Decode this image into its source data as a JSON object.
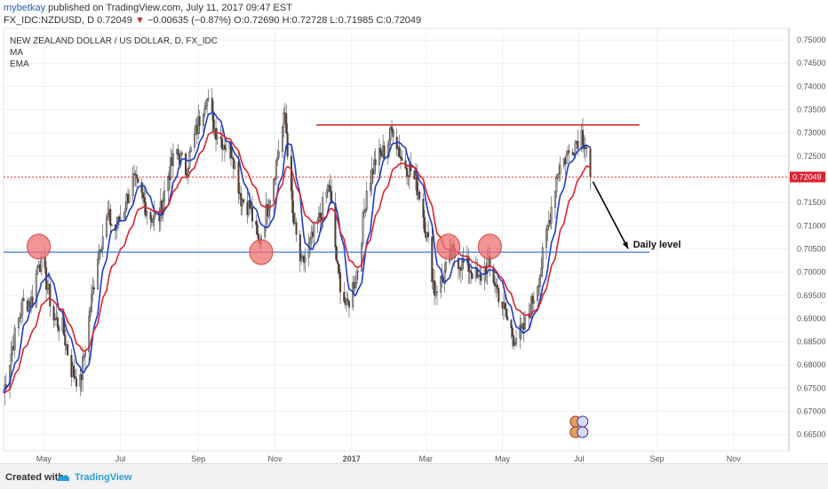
{
  "header": {
    "author": "mybetkay",
    "published_text": "published on TradingView.com, July 11, 2017 09:47 EST",
    "symbol": "FX_IDC:NZDUSD, D",
    "last": "0.72049",
    "change": "−0.00635 (−0.87%)",
    "ohlc": "O:0.72690 H:0.72728 L:0.71985 C:0.72049"
  },
  "legend": {
    "title": "NEW ZEALAND DOLLAR / US DOLLAR, D, FX_IDC",
    "ma": "MA",
    "ema": "EMA"
  },
  "annotation": {
    "daily_level": "Daily level"
  },
  "footer": {
    "created_with": "Created with",
    "brand": "TradingView"
  },
  "colors": {
    "up_candle": "#a8a8a8",
    "down_candle": "#5a3a2a",
    "ma_line": "#1f3cc7",
    "ema_line": "#d9232e",
    "support_line": "#3d7ad6",
    "resistance_line": "#d22b2b",
    "highlight": "#f07070",
    "price_label_bg": "#d9232e"
  },
  "chart_data": {
    "type": "candlestick",
    "title": "NEW ZEALAND DOLLAR / US DOLLAR, D, FX_IDC",
    "y_axis_side": "right",
    "ylim": [
      0.6615,
      0.7525
    ],
    "y_ticks": [
      "0.75000",
      "0.74500",
      "0.74000",
      "0.73500",
      "0.73000",
      "0.72500",
      "0.72000",
      "0.71500",
      "0.71000",
      "0.70500",
      "0.70000",
      "0.69500",
      "0.69000",
      "0.68500",
      "0.68000",
      "0.67500",
      "0.67000",
      "0.66500"
    ],
    "x_ticks": [
      {
        "label": "May",
        "date": "2016-05-01"
      },
      {
        "label": "Jul",
        "date": "2016-07-01"
      },
      {
        "label": "Sep",
        "date": "2016-09-01"
      },
      {
        "label": "Nov",
        "date": "2016-11-01"
      },
      {
        "label": "2017",
        "date": "2017-01-01"
      },
      {
        "label": "Mar",
        "date": "2017-03-01"
      },
      {
        "label": "May",
        "date": "2017-05-01"
      },
      {
        "label": "Jul",
        "date": "2017-07-01"
      },
      {
        "label": "Sep",
        "date": "2017-09-01"
      },
      {
        "label": "Nov",
        "date": "2017-11-01"
      }
    ],
    "x_range": [
      "2016-03-30",
      "2017-12-15"
    ],
    "last_price": {
      "value": 0.72049,
      "label": "0.72049"
    },
    "price_path": [
      [
        "2016-03-30",
        0.674
      ],
      [
        "2016-04-06",
        0.684
      ],
      [
        "2016-04-14",
        0.693
      ],
      [
        "2016-04-22",
        0.694
      ],
      [
        "2016-04-27",
        0.703
      ],
      [
        "2016-05-03",
        0.698
      ],
      [
        "2016-05-09",
        0.69
      ],
      [
        "2016-05-16",
        0.688
      ],
      [
        "2016-05-23",
        0.679
      ],
      [
        "2016-05-30",
        0.676
      ],
      [
        "2016-06-06",
        0.69
      ],
      [
        "2016-06-13",
        0.704
      ],
      [
        "2016-06-21",
        0.712
      ],
      [
        "2016-06-27",
        0.709
      ],
      [
        "2016-07-04",
        0.714
      ],
      [
        "2016-07-11",
        0.72
      ],
      [
        "2016-07-18",
        0.716
      ],
      [
        "2016-07-25",
        0.712
      ],
      [
        "2016-08-01",
        0.712
      ],
      [
        "2016-08-08",
        0.721
      ],
      [
        "2016-08-15",
        0.726
      ],
      [
        "2016-08-22",
        0.722
      ],
      [
        "2016-08-29",
        0.729
      ],
      [
        "2016-09-07",
        0.738
      ],
      [
        "2016-09-14",
        0.731
      ],
      [
        "2016-09-21",
        0.728
      ],
      [
        "2016-09-28",
        0.726
      ],
      [
        "2016-10-05",
        0.716
      ],
      [
        "2016-10-12",
        0.714
      ],
      [
        "2016-10-19",
        0.706
      ],
      [
        "2016-10-26",
        0.714
      ],
      [
        "2016-11-03",
        0.725
      ],
      [
        "2016-11-09",
        0.734
      ],
      [
        "2016-11-15",
        0.712
      ],
      [
        "2016-11-22",
        0.701
      ],
      [
        "2016-11-29",
        0.706
      ],
      [
        "2016-12-07",
        0.712
      ],
      [
        "2016-12-14",
        0.719
      ],
      [
        "2016-12-21",
        0.7
      ],
      [
        "2016-12-28",
        0.692
      ],
      [
        "2017-01-06",
        0.701
      ],
      [
        "2017-01-13",
        0.718
      ],
      [
        "2017-01-20",
        0.724
      ],
      [
        "2017-01-27",
        0.726
      ],
      [
        "2017-02-03",
        0.731
      ],
      [
        "2017-02-10",
        0.724
      ],
      [
        "2017-02-17",
        0.722
      ],
      [
        "2017-02-24",
        0.717
      ],
      [
        "2017-03-03",
        0.706
      ],
      [
        "2017-03-08",
        0.696
      ],
      [
        "2017-03-15",
        0.699
      ],
      [
        "2017-03-22",
        0.704
      ],
      [
        "2017-03-29",
        0.702
      ],
      [
        "2017-04-05",
        0.701
      ],
      [
        "2017-04-12",
        0.698
      ],
      [
        "2017-04-19",
        0.702
      ],
      [
        "2017-04-26",
        0.697
      ],
      [
        "2017-05-03",
        0.691
      ],
      [
        "2017-05-10",
        0.686
      ],
      [
        "2017-05-17",
        0.687
      ],
      [
        "2017-05-24",
        0.693
      ],
      [
        "2017-05-31",
        0.7
      ],
      [
        "2017-06-07",
        0.711
      ],
      [
        "2017-06-14",
        0.722
      ],
      [
        "2017-06-21",
        0.725
      ],
      [
        "2017-06-28",
        0.728
      ],
      [
        "2017-07-03",
        0.73
      ],
      [
        "2017-07-07",
        0.7269
      ],
      [
        "2017-07-10",
        0.72049
      ]
    ],
    "horizontal_levels": [
      {
        "name": "support",
        "value": 0.7043
      },
      {
        "name": "resistance",
        "value": 0.7317
      }
    ],
    "annotations": [
      {
        "text": "Daily level",
        "value": 0.7043
      }
    ]
  }
}
